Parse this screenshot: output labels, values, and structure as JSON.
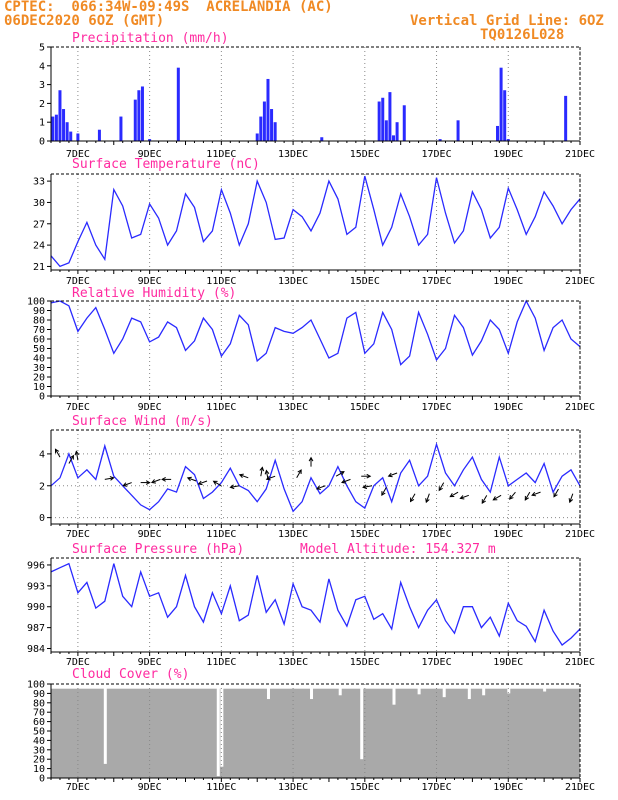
{
  "header": {
    "line1_left": "CPTEC:  066:34W-09:49S  ACRELANDIA (AC)",
    "line2_left": "06DEC2020 6OZ (GMT)",
    "line1_right": "Vertical Grid Line: 6OZ",
    "line2_right": "TQ0126L028"
  },
  "colors": {
    "header": "#f08a24",
    "title": "#ff2aa0",
    "series": "#2a2aff",
    "bars": "#2a2aff",
    "cloud": "#a9a9a9",
    "wind_arrow": "#000000"
  },
  "chart_data": [
    {
      "type": "bar",
      "title": "Precipitation (mm/h)",
      "x_tick_labels": [
        "7DEC",
        "9DEC",
        "11DEC",
        "13DEC",
        "15DEC",
        "17DEC",
        "19DEC",
        "21DEC"
      ],
      "x_range_days": [
        6.25,
        21.0
      ],
      "ylim": [
        0,
        5
      ],
      "yticks": [
        0,
        1,
        2,
        3,
        4,
        5
      ],
      "grid": "vertical dotted at 06Z",
      "x": [
        6.3,
        6.4,
        6.5,
        6.6,
        6.7,
        6.8,
        7.0,
        7.6,
        8.2,
        8.6,
        8.7,
        8.8,
        9.0,
        9.8,
        12.0,
        12.1,
        12.2,
        12.3,
        12.4,
        12.5,
        13.8,
        15.4,
        15.5,
        15.6,
        15.7,
        15.8,
        15.9,
        16.1,
        17.1,
        17.6,
        18.7,
        18.8,
        18.9,
        19.0,
        20.6
      ],
      "values": [
        1.3,
        1.4,
        2.7,
        1.7,
        1.0,
        0.5,
        0.4,
        0.6,
        1.3,
        2.2,
        2.7,
        2.9,
        0.1,
        3.9,
        0.4,
        1.3,
        2.1,
        3.3,
        1.7,
        1.0,
        0.2,
        2.1,
        2.3,
        1.1,
        2.6,
        0.3,
        1.0,
        1.9,
        0.1,
        1.1,
        0.8,
        3.9,
        2.7,
        0.1,
        2.4
      ]
    },
    {
      "type": "line",
      "title": "Surface Temperature (nC)",
      "x_tick_labels": [
        "7DEC",
        "9DEC",
        "11DEC",
        "13DEC",
        "15DEC",
        "17DEC",
        "19DEC",
        "21DEC"
      ],
      "ylim": [
        20.5,
        34
      ],
      "yticks": [
        21,
        24,
        27,
        30,
        33
      ],
      "x": [
        6.25,
        6.5,
        6.75,
        7.0,
        7.25,
        7.5,
        7.75,
        8.0,
        8.25,
        8.5,
        8.75,
        9.0,
        9.25,
        9.5,
        9.75,
        10.0,
        10.25,
        10.5,
        10.75,
        11.0,
        11.25,
        11.5,
        11.75,
        12.0,
        12.25,
        12.5,
        12.75,
        13.0,
        13.25,
        13.5,
        13.75,
        14.0,
        14.25,
        14.5,
        14.75,
        15.0,
        15.25,
        15.5,
        15.75,
        16.0,
        16.25,
        16.5,
        16.75,
        17.0,
        17.25,
        17.5,
        17.75,
        18.0,
        18.25,
        18.5,
        18.75,
        19.0,
        19.25,
        19.5,
        19.75,
        20.0,
        20.25,
        20.5,
        20.75,
        21.0
      ],
      "values": [
        22.5,
        21.0,
        21.5,
        24.5,
        27.2,
        24.0,
        22.0,
        31.8,
        29.5,
        25.0,
        25.5,
        29.8,
        27.8,
        24.0,
        26.0,
        31.2,
        29.3,
        24.5,
        26.0,
        31.8,
        28.5,
        24.0,
        27.0,
        33.0,
        30.0,
        24.8,
        25.0,
        29.0,
        28.0,
        26.0,
        28.5,
        33.0,
        30.5,
        25.5,
        26.5,
        33.7,
        29.0,
        24.0,
        26.5,
        31.2,
        28.0,
        24.0,
        25.5,
        33.5,
        28.5,
        24.3,
        26.0,
        31.5,
        29.0,
        25.0,
        26.5,
        32.0,
        29.0,
        25.5,
        28.0,
        31.5,
        29.5,
        27.0,
        29.0,
        30.5
      ]
    },
    {
      "type": "line",
      "title": "Relative Humidity (%)",
      "x_tick_labels": [
        "7DEC",
        "9DEC",
        "11DEC",
        "13DEC",
        "15DEC",
        "17DEC",
        "19DEC",
        "21DEC"
      ],
      "ylim": [
        0,
        100
      ],
      "yticks": [
        0,
        10,
        20,
        30,
        40,
        50,
        60,
        70,
        80,
        90,
        100
      ],
      "x": [
        6.25,
        6.5,
        6.75,
        7.0,
        7.25,
        7.5,
        7.75,
        8.0,
        8.25,
        8.5,
        8.75,
        9.0,
        9.25,
        9.5,
        9.75,
        10.0,
        10.25,
        10.5,
        10.75,
        11.0,
        11.25,
        11.5,
        11.75,
        12.0,
        12.25,
        12.5,
        12.75,
        13.0,
        13.25,
        13.5,
        13.75,
        14.0,
        14.25,
        14.5,
        14.75,
        15.0,
        15.25,
        15.5,
        15.75,
        16.0,
        16.25,
        16.5,
        16.75,
        17.0,
        17.25,
        17.5,
        17.75,
        18.0,
        18.25,
        18.5,
        18.75,
        19.0,
        19.25,
        19.5,
        19.75,
        20.0,
        20.25,
        20.5,
        20.75,
        21.0
      ],
      "values": [
        98,
        100,
        95,
        68,
        82,
        93,
        70,
        45,
        60,
        82,
        78,
        57,
        62,
        78,
        72,
        48,
        58,
        82,
        70,
        42,
        55,
        85,
        75,
        37,
        45,
        72,
        68,
        66,
        72,
        80,
        60,
        40,
        45,
        82,
        88,
        45,
        55,
        88,
        70,
        33,
        42,
        88,
        65,
        38,
        50,
        85,
        72,
        43,
        58,
        80,
        70,
        45,
        78,
        100,
        82,
        48,
        72,
        80,
        60,
        52
      ]
    },
    {
      "type": "line",
      "title": "Surface Wind (m/s)",
      "x_tick_labels": [
        "7DEC",
        "9DEC",
        "11DEC",
        "13DEC",
        "15DEC",
        "17DEC",
        "19DEC",
        "21DEC"
      ],
      "ylim": [
        -0.4,
        5.5
      ],
      "yticks": [
        0,
        2,
        4
      ],
      "x": [
        6.25,
        6.5,
        6.75,
        7.0,
        7.25,
        7.5,
        7.75,
        8.0,
        8.25,
        8.5,
        8.75,
        9.0,
        9.25,
        9.5,
        9.75,
        10.0,
        10.25,
        10.5,
        10.75,
        11.0,
        11.25,
        11.5,
        11.75,
        12.0,
        12.25,
        12.5,
        12.75,
        13.0,
        13.25,
        13.5,
        13.75,
        14.0,
        14.25,
        14.5,
        14.75,
        15.0,
        15.25,
        15.5,
        15.75,
        16.0,
        16.25,
        16.5,
        16.75,
        17.0,
        17.25,
        17.5,
        17.75,
        18.0,
        18.25,
        18.5,
        18.75,
        19.0,
        19.25,
        19.5,
        19.75,
        20.0,
        20.25,
        20.5,
        20.75,
        21.0
      ],
      "values": [
        2.0,
        2.5,
        4.0,
        2.5,
        3.0,
        2.4,
        4.5,
        2.6,
        2.0,
        1.4,
        0.8,
        0.5,
        1.0,
        1.8,
        1.6,
        3.2,
        2.7,
        1.2,
        1.6,
        2.2,
        3.1,
        2.0,
        1.7,
        1.0,
        1.8,
        3.6,
        1.8,
        0.4,
        1.0,
        2.5,
        1.5,
        2.0,
        3.2,
        2.0,
        1.0,
        0.6,
        2.0,
        2.5,
        1.0,
        2.8,
        3.6,
        2.0,
        2.6,
        4.6,
        2.8,
        2.0,
        3.0,
        3.8,
        2.4,
        1.6,
        3.8,
        2.0,
        2.4,
        2.8,
        2.2,
        3.4,
        1.6,
        2.6,
        3.0,
        2.0
      ],
      "arrows_x": [
        6.5,
        6.75,
        7.0,
        7.75,
        8.5,
        8.75,
        9.3,
        9.6,
        10.3,
        10.6,
        11.0,
        11.5,
        11.75,
        12.1,
        12.3,
        12.5,
        13.1,
        13.5,
        13.9,
        14.2,
        14.6,
        14.9,
        15.2,
        15.6,
        15.9,
        16.4,
        16.8,
        17.2,
        17.6,
        17.9,
        18.4,
        18.8,
        19.2,
        19.6,
        19.9,
        20.4,
        20.8
      ],
      "arrows_y": [
        3.8,
        3.4,
        3.6,
        2.4,
        2.2,
        2.2,
        2.4,
        2.4,
        2.3,
        2.3,
        2.0,
        2.0,
        2.5,
        2.6,
        2.4,
        2.6,
        2.5,
        3.2,
        2.0,
        2.6,
        2.4,
        2.6,
        2.0,
        1.9,
        2.8,
        1.5,
        1.5,
        2.2,
        1.6,
        1.4,
        1.4,
        1.4,
        1.6,
        1.6,
        1.6,
        1.8,
        1.5
      ],
      "arrows_angle_deg": [
        120,
        60,
        100,
        10,
        200,
        0,
        200,
        180,
        160,
        200,
        150,
        190,
        160,
        80,
        100,
        200,
        60,
        90,
        200,
        30,
        200,
        0,
        190,
        240,
        200,
        240,
        250,
        240,
        210,
        200,
        240,
        210,
        230,
        240,
        200,
        240,
        250
      ]
    },
    {
      "type": "line",
      "title": "Surface Pressure (hPa)",
      "annotation": "Model Altitude: 154.327 m",
      "x_tick_labels": [
        "7DEC",
        "9DEC",
        "11DEC",
        "13DEC",
        "15DEC",
        "17DEC",
        "19DEC",
        "21DEC"
      ],
      "ylim": [
        983.5,
        997
      ],
      "yticks": [
        984,
        987,
        990,
        993,
        996
      ],
      "x": [
        6.25,
        6.5,
        6.75,
        7.0,
        7.25,
        7.5,
        7.75,
        8.0,
        8.25,
        8.5,
        8.75,
        9.0,
        9.25,
        9.5,
        9.75,
        10.0,
        10.25,
        10.5,
        10.75,
        11.0,
        11.25,
        11.5,
        11.75,
        12.0,
        12.25,
        12.5,
        12.75,
        13.0,
        13.25,
        13.5,
        13.75,
        14.0,
        14.25,
        14.5,
        14.75,
        15.0,
        15.25,
        15.5,
        15.75,
        16.0,
        16.25,
        16.5,
        16.75,
        17.0,
        17.25,
        17.5,
        17.75,
        18.0,
        18.25,
        18.5,
        18.75,
        19.0,
        19.25,
        19.5,
        19.75,
        20.0,
        20.25,
        20.5,
        20.75,
        21.0
      ],
      "values": [
        995.0,
        995.6,
        996.2,
        992.0,
        993.5,
        989.8,
        990.8,
        996.2,
        991.5,
        990.0,
        995.0,
        991.5,
        992.0,
        988.5,
        990.0,
        994.5,
        990.0,
        987.8,
        992.0,
        989.0,
        993.0,
        988.0,
        988.8,
        994.5,
        989.2,
        991.0,
        987.5,
        993.3,
        990.0,
        989.5,
        987.8,
        994.0,
        989.5,
        987.2,
        991.0,
        991.5,
        988.2,
        989.0,
        986.8,
        993.5,
        990.0,
        987.0,
        989.5,
        991.0,
        988.0,
        986.2,
        990.0,
        990.0,
        987.0,
        988.5,
        985.8,
        990.5,
        988.0,
        987.2,
        985.0,
        989.5,
        986.5,
        984.5,
        985.5,
        986.8
      ]
    },
    {
      "type": "bar",
      "title": "Cloud Cover (%)",
      "x_tick_labels": [
        "7DEC",
        "9DEC",
        "11DEC",
        "13DEC",
        "15DEC",
        "17DEC",
        "19DEC",
        "21DEC"
      ],
      "ylim": [
        0,
        100
      ],
      "yticks": [
        0,
        10,
        20,
        30,
        40,
        50,
        60,
        70,
        80,
        90,
        100
      ],
      "base_level_percent": 95,
      "dips_x": [
        7.75,
        10.9,
        11.0,
        12.3,
        13.5,
        14.3,
        14.9,
        15.8,
        16.5,
        17.2,
        17.9,
        18.3,
        19.0,
        20.0
      ],
      "dips_values": [
        15,
        2,
        12,
        84,
        84,
        88,
        20,
        78,
        89,
        86,
        84,
        88,
        90,
        92
      ]
    }
  ]
}
